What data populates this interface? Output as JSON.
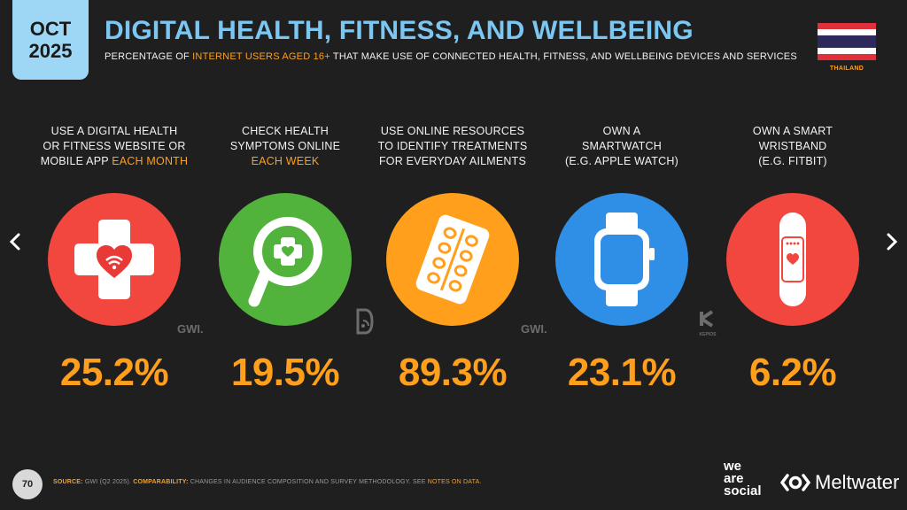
{
  "header": {
    "month": "OCT",
    "year": "2025",
    "title": "DIGITAL HEALTH, FITNESS, AND WELLBEING",
    "subtitle_pre": "PERCENTAGE OF ",
    "subtitle_hl": "INTERNET USERS AGED 16+",
    "subtitle_post": " THAT MAKE USE OF CONNECTED HEALTH, FITNESS, AND WELLBEING DEVICES AND SERVICES",
    "country": "THAILAND"
  },
  "colors": {
    "accent": "#ff9f1c",
    "title": "#7cc7f2",
    "red": "#f2473f",
    "green": "#52b33c",
    "orange": "#ff9f1c",
    "blue": "#2f8ee6"
  },
  "nav": {
    "prev": "‹",
    "next": "›"
  },
  "metrics": [
    {
      "label_lines": [
        "USE A DIGITAL HEALTH",
        "OR FITNESS WEBSITE OR"
      ],
      "label_last_pre": "MOBILE APP ",
      "label_last_hl": "EACH MONTH",
      "value": "25.2%",
      "icon": "health-cross-heart-icon"
    },
    {
      "label_lines": [
        "CHECK HEALTH",
        "SYMPTOMS ONLINE"
      ],
      "label_last_pre": "",
      "label_last_hl": "EACH WEEK",
      "value": "19.5%",
      "icon": "magnifier-cross-icon"
    },
    {
      "label_lines": [
        "USE ONLINE RESOURCES",
        "TO IDENTIFY TREATMENTS"
      ],
      "label_last_pre": "FOR EVERYDAY AILMENTS",
      "label_last_hl": "",
      "value": "89.3%",
      "icon": "pill-pack-icon"
    },
    {
      "label_lines": [
        "OWN A",
        "SMARTWATCH"
      ],
      "label_last_pre": "(E.G. APPLE WATCH)",
      "label_last_hl": "",
      "value": "23.1%",
      "icon": "smartwatch-icon"
    },
    {
      "label_lines": [
        "OWN A SMART",
        "WRISTBAND"
      ],
      "label_last_pre": "(E.G. FITBIT)",
      "label_last_hl": "",
      "value": "6.2%",
      "icon": "wristband-icon"
    }
  ],
  "sources": {
    "gwi_1": "GWI.",
    "gwi_2": "GWI.",
    "kepios": "KEPIOS"
  },
  "footer": {
    "page": "70",
    "source_key": "SOURCE:",
    "source_text": " GWI (Q2 2025). ",
    "comparability_key": "COMPARABILITY:",
    "comparability_text": " CHANGES IN AUDIENCE COMPOSITION AND SURVEY METHODOLOGY. SEE ",
    "notes_link": "NOTES ON DATA",
    "end": "."
  },
  "brands": {
    "was_1": "we",
    "was_2": "are",
    "was_3": "social",
    "meltwater": "Meltwater"
  }
}
